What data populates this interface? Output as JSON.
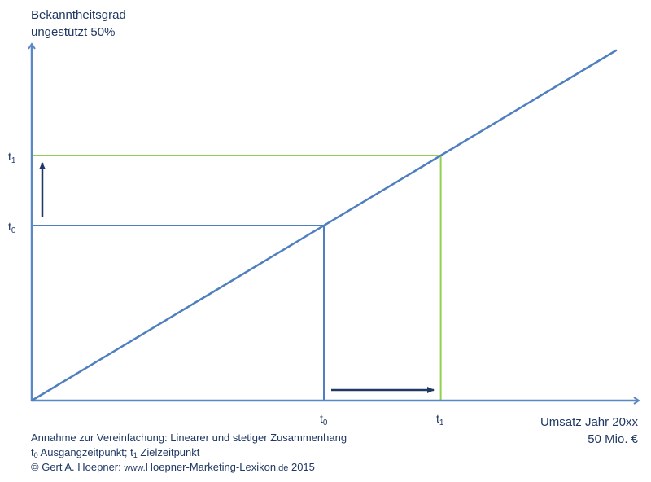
{
  "chart_data": {
    "type": "line",
    "ylabel_lines": [
      "Bekanntheitsgrad",
      "ungestützt 50%"
    ],
    "xlabel_lines": [
      "Umsatz Jahr 20xx",
      "50 Mio. €"
    ],
    "series": [
      {
        "values_note": "",
        "x": [
          0,
          1
        ],
        "y": [
          0,
          1
        ]
      }
    ],
    "xlim": [
      0,
      1
    ],
    "ylim": [
      0,
      1
    ],
    "points": [
      {
        "base": "t",
        "sub": "0",
        "x": 0.5,
        "y": 0.5
      },
      {
        "base": "t",
        "sub": "1",
        "x": 0.7,
        "y": 0.7
      }
    ],
    "colors": {
      "axis": "#5b87c5",
      "line": "#4f7fbf",
      "t0_guide": "#4f7fbf",
      "t1_guide": "#92d050",
      "arrow": "#1f3864"
    }
  },
  "notes": {
    "line1": "Annahme zur Vereinfachung: Linearer und stetiger Zusammenhang",
    "t0_base": "t",
    "t0_sub": "0",
    "t0_text": "Ausgangzeitpunkt; ",
    "t1_base": "t",
    "t1_sub": "1",
    "t1_text": "Zielzeitpunkt",
    "copyright_prefix": "© Gert A. Hoepner: ",
    "url_small_www": "www.",
    "url_main": "Hoepner-Marketing-Lexikon",
    "url_small_de": ".de",
    "year": " 2015"
  }
}
